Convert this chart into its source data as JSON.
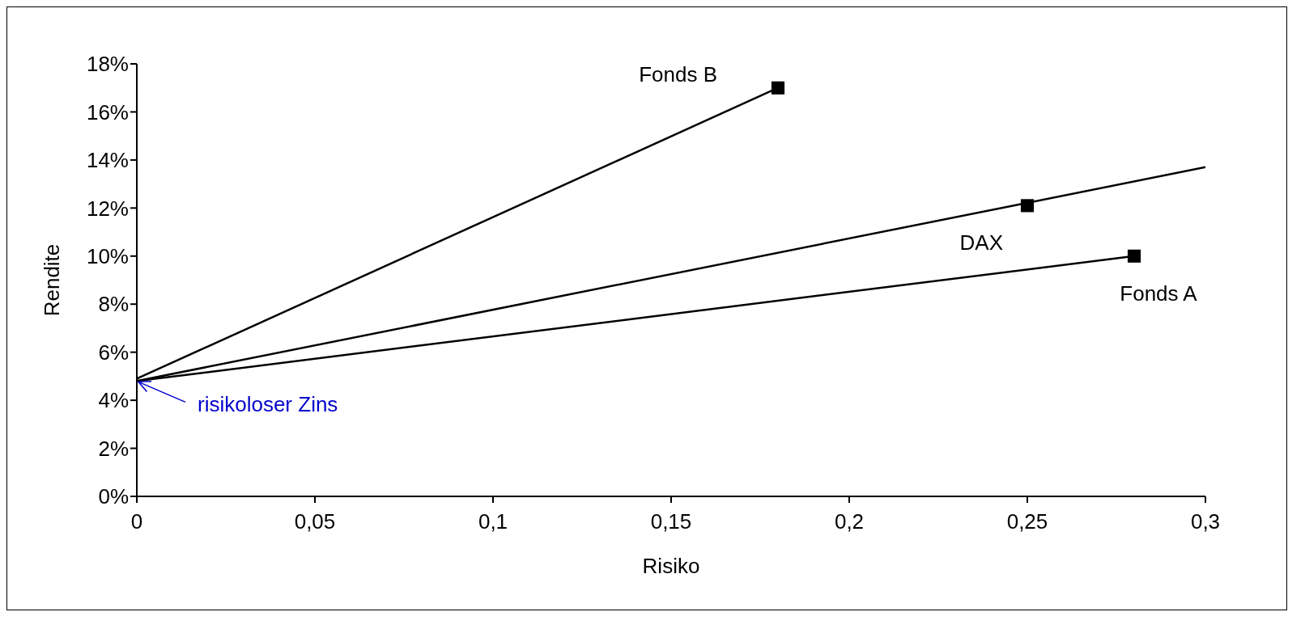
{
  "chart_data": {
    "type": "scatter",
    "xlabel": "Risiko",
    "ylabel": "Rendite",
    "xlim": [
      0,
      0.3
    ],
    "ylim": [
      0,
      18
    ],
    "xticks": [
      {
        "value": 0,
        "label": "0"
      },
      {
        "value": 0.05,
        "label": "0,05"
      },
      {
        "value": 0.1,
        "label": "0,1"
      },
      {
        "value": 0.15,
        "label": "0,15"
      },
      {
        "value": 0.2,
        "label": "0,2"
      },
      {
        "value": 0.25,
        "label": "0,25"
      },
      {
        "value": 0.3,
        "label": "0,3"
      }
    ],
    "yticks": [
      {
        "value": 0,
        "label": "0%"
      },
      {
        "value": 2,
        "label": "2%"
      },
      {
        "value": 4,
        "label": "4%"
      },
      {
        "value": 6,
        "label": "6%"
      },
      {
        "value": 8,
        "label": "8%"
      },
      {
        "value": 10,
        "label": "10%"
      },
      {
        "value": 12,
        "label": "12%"
      },
      {
        "value": 14,
        "label": "14%"
      },
      {
        "value": 16,
        "label": "16%"
      },
      {
        "value": 18,
        "label": "18%"
      }
    ],
    "grid": false,
    "series": [
      {
        "type": "line",
        "color": "#000000",
        "marker": "none",
        "x": [
          0,
          0.18
        ],
        "values": [
          4.9,
          17
        ]
      },
      {
        "type": "line",
        "color": "#000000",
        "marker": "none",
        "x": [
          0,
          0.3
        ],
        "values": [
          4.8,
          13.7
        ]
      },
      {
        "type": "line",
        "color": "#000000",
        "marker": "none",
        "x": [
          0,
          0.28
        ],
        "values": [
          4.8,
          10
        ]
      },
      {
        "color": "#000000",
        "marker": "square",
        "x": [
          0.18,
          0.25,
          0.28
        ],
        "values": [
          17,
          12.1,
          10
        ]
      }
    ],
    "annotations": [
      {
        "text": "Fonds B",
        "x": 0.18,
        "y": 17
      },
      {
        "text": "DAX",
        "x": 0.25,
        "y": 12.1
      },
      {
        "text": "Fonds A",
        "x": 0.28,
        "y": 10
      },
      {
        "text": "risikoloser Zins",
        "x": 0,
        "y": 4.8
      }
    ]
  }
}
